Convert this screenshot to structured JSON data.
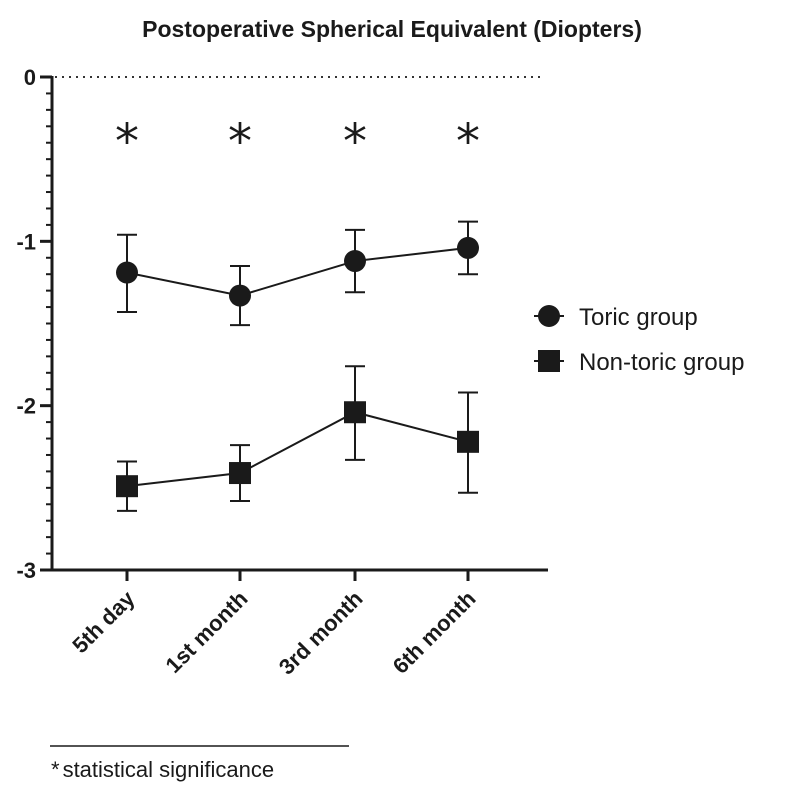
{
  "chart_data": {
    "type": "line",
    "title": "Postoperative Spherical Equivalent (Diopters)",
    "xlabel": "",
    "ylabel": "",
    "categories": [
      "5th day",
      "1st month",
      "3rd month",
      "6th month"
    ],
    "ylim": [
      -3,
      0
    ],
    "yticks": [
      0,
      -1,
      -2,
      -3
    ],
    "ytick_labels": [
      "0",
      "-1",
      "-2",
      "-3"
    ],
    "grid": false,
    "reference_line": {
      "y": 0,
      "style": "dotted"
    },
    "legend_position": "right",
    "series": [
      {
        "name": "Toric group",
        "marker": "circle",
        "color": "#1a1a1a",
        "values": [
          -1.19,
          -1.33,
          -1.12,
          -1.04
        ],
        "error_lower": [
          -1.43,
          -1.51,
          -1.31,
          -1.2
        ],
        "error_upper": [
          -0.96,
          -1.15,
          -0.93,
          -0.88
        ]
      },
      {
        "name": "Non-toric group",
        "marker": "square",
        "color": "#1a1a1a",
        "values": [
          -2.49,
          -2.41,
          -2.04,
          -2.22
        ],
        "error_lower": [
          -2.64,
          -2.58,
          -2.33,
          -2.53
        ],
        "error_upper": [
          -2.34,
          -2.24,
          -1.76,
          -1.92
        ]
      }
    ],
    "annotations": {
      "significance_marks": [
        "*",
        "*",
        "*",
        "*"
      ],
      "footnote_symbol": "*",
      "footnote_text": "statistical significance"
    }
  }
}
